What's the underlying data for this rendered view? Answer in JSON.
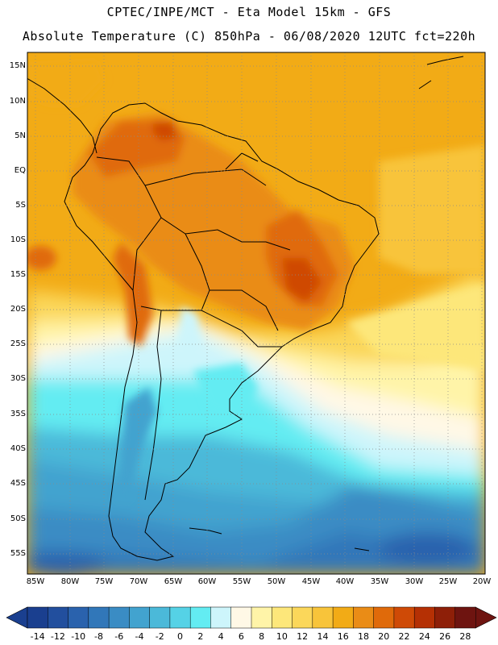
{
  "header": {
    "line1": "CPTEC/INPE/MCT -  Eta Model 15km - GFS",
    "line2": "Absolute Temperature (C) 850hPa - 06/08/2020 12UTC fct=220h"
  },
  "map": {
    "variable": "Absolute Temperature",
    "units": "C",
    "level": "850hPa",
    "model": "Eta Model 15km - GFS",
    "lat_labels": [
      "15N",
      "10N",
      "5N",
      "EQ",
      "5S",
      "10S",
      "15S",
      "20S",
      "25S",
      "30S",
      "35S",
      "40S",
      "45S",
      "50S",
      "55S"
    ],
    "lon_labels": [
      "85W",
      "80W",
      "75W",
      "70W",
      "65W",
      "60W",
      "55W",
      "50W",
      "45W",
      "40W",
      "35W",
      "30W",
      "25W",
      "20W"
    ]
  },
  "colorbar": {
    "labels": [
      "-14",
      "-12",
      "-10",
      "-8",
      "-6",
      "-4",
      "-2",
      "0",
      "2",
      "4",
      "6",
      "8",
      "10",
      "12",
      "14",
      "16",
      "18",
      "20",
      "22",
      "24",
      "26",
      "28"
    ],
    "colors": [
      "#1a3f8f",
      "#224f9e",
      "#2a62ad",
      "#3177b9",
      "#3a8cc4",
      "#42a3cf",
      "#4bb9d9",
      "#55d2e6",
      "#63ecf2",
      "#cdf5fb",
      "#fff8e6",
      "#fff4a8",
      "#fde77a",
      "#fbd75a",
      "#f8c43a",
      "#f2ab16",
      "#ea8c16",
      "#e06a0a",
      "#cf4a06",
      "#b53004",
      "#8e1f08",
      "#6e1410"
    ]
  }
}
